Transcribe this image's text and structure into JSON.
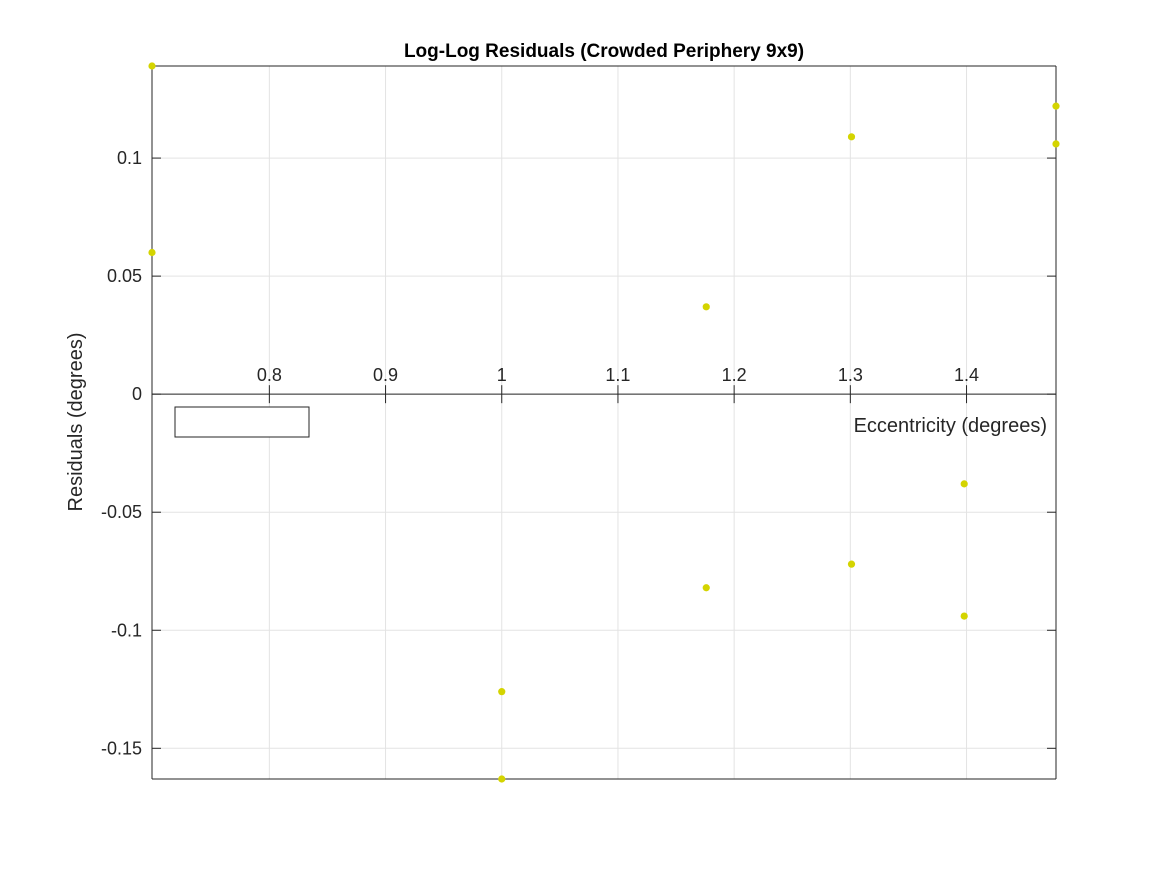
{
  "chart_data": {
    "type": "scatter",
    "title": "Log-Log Residuals (Crowded Periphery 9x9)",
    "xlabel": "Eccentricity (degrees)",
    "ylabel": "Residuals (degrees)",
    "xlim": [
      0.699,
      1.477
    ],
    "ylim": [
      -0.163,
      0.139
    ],
    "xticks": [
      0.8,
      0.9,
      1.0,
      1.1,
      1.2,
      1.3,
      1.4
    ],
    "xtick_labels": [
      "0.8",
      "0.9",
      "1",
      "1.1",
      "1.2",
      "1.3",
      "1.4"
    ],
    "yticks": [
      -0.15,
      -0.1,
      -0.05,
      0,
      0.05,
      0.1
    ],
    "ytick_labels": [
      "-0.15",
      "-0.1",
      "-0.05",
      "0",
      "0.05",
      "0.1"
    ],
    "x_axis_location": "origin",
    "grid": true,
    "legend": "empty box, top-left below x-axis",
    "marker_color": "#d4d400",
    "points": [
      {
        "x": 0.699,
        "y": 0.139
      },
      {
        "x": 0.699,
        "y": 0.06
      },
      {
        "x": 1.0,
        "y": -0.126
      },
      {
        "x": 1.0,
        "y": -0.163
      },
      {
        "x": 1.176,
        "y": 0.037
      },
      {
        "x": 1.176,
        "y": -0.082
      },
      {
        "x": 1.301,
        "y": 0.109
      },
      {
        "x": 1.301,
        "y": -0.072
      },
      {
        "x": 1.398,
        "y": -0.038
      },
      {
        "x": 1.398,
        "y": -0.094
      },
      {
        "x": 1.477,
        "y": 0.122
      },
      {
        "x": 1.477,
        "y": 0.106
      }
    ]
  }
}
